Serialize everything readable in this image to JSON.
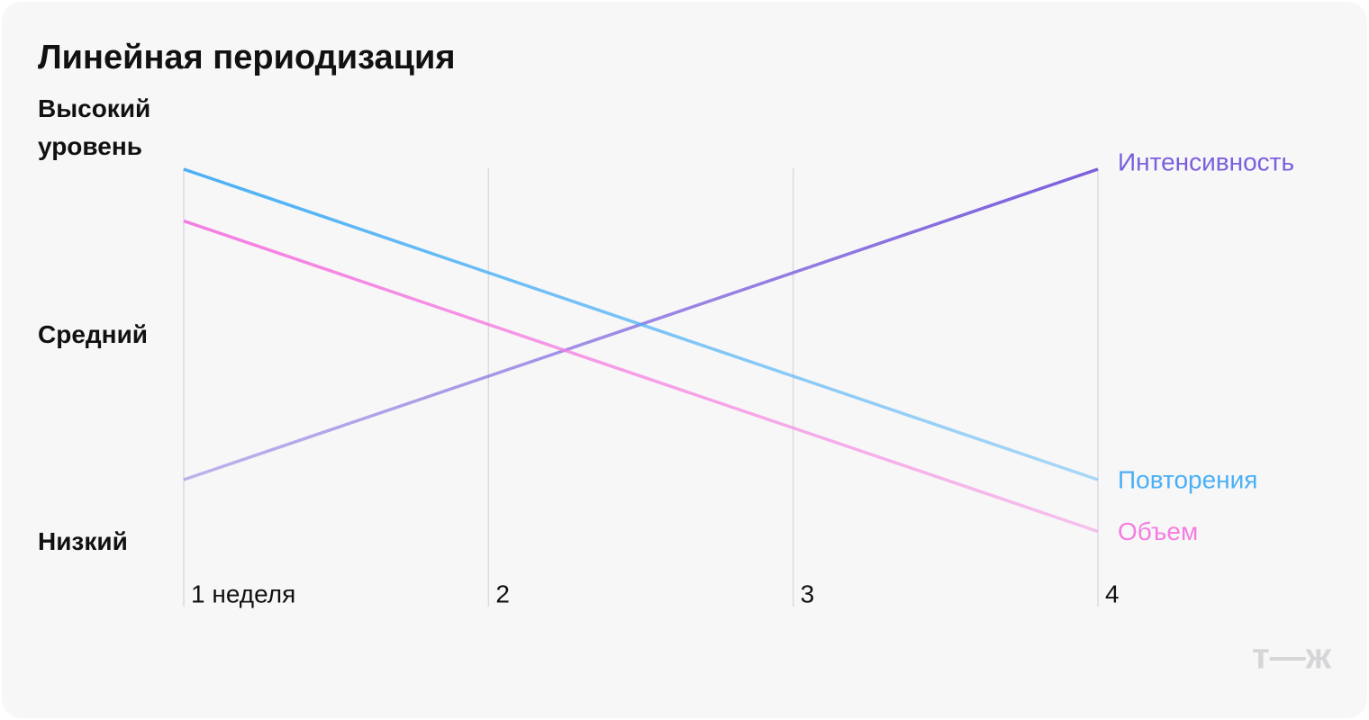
{
  "chart_data": {
    "type": "line",
    "title": "Линейная периодизация",
    "categories": [
      "1 неделя",
      "2",
      "3",
      "4"
    ],
    "series": [
      {
        "name": "Интенсивность",
        "color": "#7b5fdc",
        "values": [
          0.3,
          0.8,
          1.3,
          1.8
        ]
      },
      {
        "name": "Повторения",
        "color": "#4bb0f5",
        "values": [
          1.8,
          1.3,
          0.8,
          0.3
        ]
      },
      {
        "name": "Объем",
        "color": "#f57de0",
        "values": [
          1.55,
          1.05,
          0.55,
          0.05
        ]
      }
    ],
    "ylim": [
      0,
      2
    ],
    "yticks": [
      {
        "value": 0,
        "label": "Низкий"
      },
      {
        "value": 1,
        "label": "Средний"
      },
      {
        "value": 2,
        "label": "Высокий уровень"
      }
    ],
    "grid": true,
    "watermark": "т—ж"
  }
}
